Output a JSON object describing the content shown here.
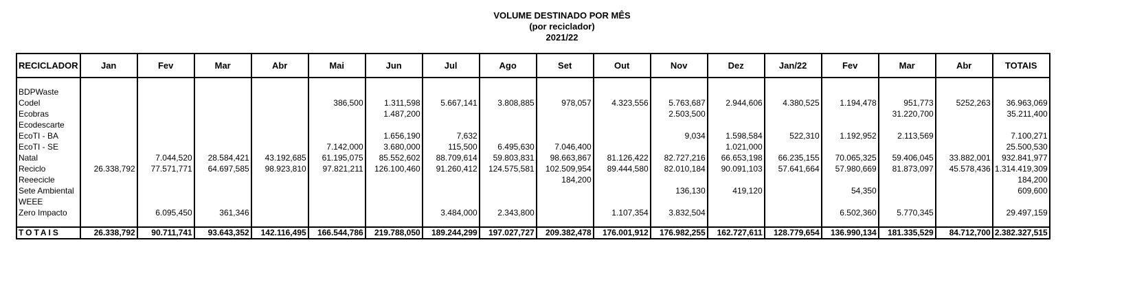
{
  "title": "VOLUME DESTINADO POR MÊS",
  "subtitle": "(por reciclador)",
  "period": "2021/22",
  "table": {
    "name_header": "RECICLADOR",
    "months": [
      "Jan",
      "Fev",
      "Mar",
      "Abr",
      "Mai",
      "Jun",
      "Jul",
      "Ago",
      "Set",
      "Out",
      "Nov",
      "Dez",
      "Jan/22",
      "Fev",
      "Mar",
      "Abr"
    ],
    "totals_header": "TOTAIS",
    "rows": [
      {
        "name": "BDPWaste",
        "values": [
          "",
          "",
          "",
          "",
          "",
          "",
          "",
          "",
          "",
          "",
          "",
          "",
          "",
          "",
          "",
          ""
        ],
        "total": ""
      },
      {
        "name": "Codel",
        "values": [
          "",
          "",
          "",
          "",
          "386,500",
          "1.311,598",
          "5.667,141",
          "3.808,885",
          "978,057",
          "4.323,556",
          "5.763,687",
          "2.944,606",
          "4.380,525",
          "1.194,478",
          "951,773",
          "5252,263"
        ],
        "total": "36.963,069"
      },
      {
        "name": "Ecobras",
        "values": [
          "",
          "",
          "",
          "",
          "",
          "1.487,200",
          "",
          "",
          "",
          "",
          "2.503,500",
          "",
          "",
          "",
          "31.220,700",
          ""
        ],
        "total": "35.211,400"
      },
      {
        "name": "Ecodescarte",
        "values": [
          "",
          "",
          "",
          "",
          "",
          "",
          "",
          "",
          "",
          "",
          "",
          "",
          "",
          "",
          "",
          ""
        ],
        "total": ""
      },
      {
        "name": "EcoTI - BA",
        "values": [
          "",
          "",
          "",
          "",
          "",
          "1.656,190",
          "7,632",
          "",
          "",
          "",
          "9,034",
          "1.598,584",
          "522,310",
          "1.192,952",
          "2.113,569",
          ""
        ],
        "total": "7.100,271"
      },
      {
        "name": "EcoTI - SE",
        "values": [
          "",
          "",
          "",
          "",
          "7.142,000",
          "3.680,000",
          "115,500",
          "6.495,630",
          "7.046,400",
          "",
          "",
          "1.021,000",
          "",
          "",
          "",
          ""
        ],
        "total": "25.500,530"
      },
      {
        "name": "Natal",
        "values": [
          "",
          "7.044,520",
          "28.584,421",
          "43.192,685",
          "61.195,075",
          "85.552,602",
          "88.709,614",
          "59.803,831",
          "98.663,867",
          "81.126,422",
          "82.727,216",
          "66.653,198",
          "66.235,155",
          "70.065,325",
          "59.406,045",
          "33.882,001"
        ],
        "total": "932.841,977"
      },
      {
        "name": "Reciclo",
        "values": [
          "26.338,792",
          "77.571,771",
          "64.697,585",
          "98.923,810",
          "97.821,211",
          "126.100,460",
          "91.260,412",
          "124.575,581",
          "102.509,954",
          "89.444,580",
          "82.010,184",
          "90.091,103",
          "57.641,664",
          "57.980,669",
          "81.873,097",
          "45.578,436"
        ],
        "total": "1.314.419,309"
      },
      {
        "name": "Reeecicle",
        "values": [
          "",
          "",
          "",
          "",
          "",
          "",
          "",
          "",
          "184,200",
          "",
          "",
          "",
          "",
          "",
          "",
          ""
        ],
        "total": "184,200"
      },
      {
        "name": "Sete Ambiental",
        "values": [
          "",
          "",
          "",
          "",
          "",
          "",
          "",
          "",
          "",
          "",
          "136,130",
          "419,120",
          "",
          "54,350",
          "",
          ""
        ],
        "total": "609,600"
      },
      {
        "name": "WEEE",
        "values": [
          "",
          "",
          "",
          "",
          "",
          "",
          "",
          "",
          "",
          "",
          "",
          "",
          "",
          "",
          "",
          ""
        ],
        "total": ""
      },
      {
        "name": "Zero Impacto",
        "values": [
          "",
          "6.095,450",
          "361,346",
          "",
          "",
          "",
          "3.484,000",
          "2.343,800",
          "",
          "1.107,354",
          "3.832,504",
          "",
          "",
          "6.502,360",
          "5.770,345",
          ""
        ],
        "total": "29.497,159"
      }
    ],
    "totals_row": {
      "label": "TOTAIS",
      "values": [
        "26.338,792",
        "90.711,741",
        "93.643,352",
        "142.116,495",
        "166.544,786",
        "219.788,050",
        "189.244,299",
        "197.027,727",
        "209.382,478",
        "176.001,912",
        "176.982,255",
        "162.727,611",
        "128.779,654",
        "136.990,134",
        "181.335,529",
        "84.712,700"
      ],
      "total": "2.382.327,515"
    }
  }
}
